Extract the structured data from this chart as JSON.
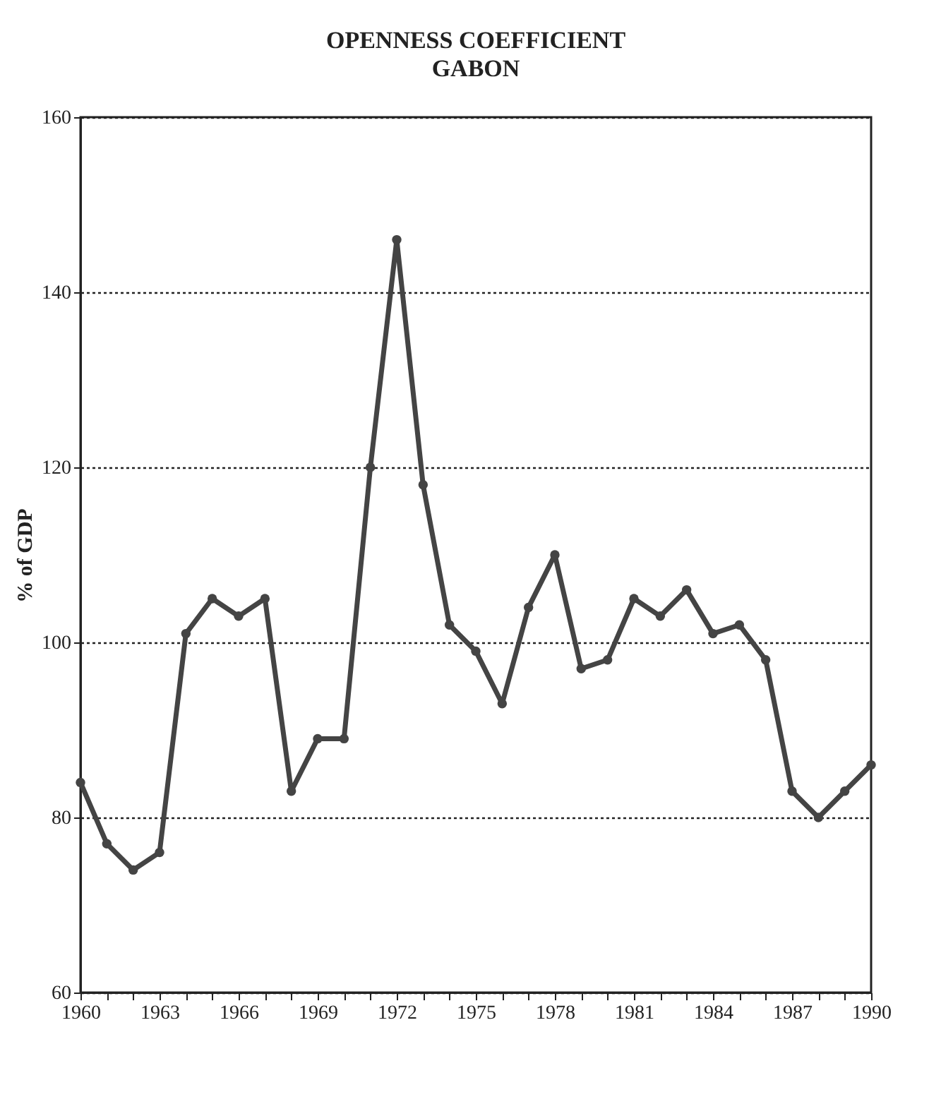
{
  "chart_data": {
    "type": "line",
    "title": "OPENNESS COEFFICIENT",
    "subtitle": "GABON",
    "ylabel": "% of GDP",
    "x": [
      1960,
      1961,
      1962,
      1963,
      1964,
      1965,
      1966,
      1967,
      1968,
      1969,
      1970,
      1971,
      1972,
      1973,
      1974,
      1975,
      1976,
      1977,
      1978,
      1979,
      1980,
      1981,
      1982,
      1983,
      1984,
      1985,
      1986,
      1987,
      1988,
      1989,
      1990
    ],
    "series": [
      {
        "color": "#444444",
        "values": [
          84,
          77,
          74,
          76,
          101,
          105,
          103,
          105,
          83,
          89,
          89,
          120,
          146,
          118,
          102,
          99,
          93,
          104,
          110,
          97,
          98,
          105,
          103,
          106,
          101,
          102,
          98,
          83,
          80,
          83,
          86
        ]
      }
    ],
    "xlim": [
      1960,
      1990
    ],
    "xticks": [
      1960,
      {
        "value": 1961,
        "label": null
      },
      {
        "value": 1962,
        "label": null
      },
      1963,
      {
        "value": 1964,
        "label": null
      },
      {
        "value": 1965,
        "label": null
      },
      1966,
      {
        "value": 1967,
        "label": null
      },
      {
        "value": 1968,
        "label": null
      },
      1969,
      {
        "value": 1970,
        "label": null
      },
      {
        "value": 1971,
        "label": null
      },
      1972,
      {
        "value": 1973,
        "label": null
      },
      {
        "value": 1974,
        "label": null
      },
      1975,
      {
        "value": 1976,
        "label": null
      },
      {
        "value": 1977,
        "label": null
      },
      1978,
      {
        "value": 1979,
        "label": null
      },
      {
        "value": 1980,
        "label": null
      },
      1981,
      {
        "value": 1982,
        "label": null
      },
      {
        "value": 1983,
        "label": null
      },
      1984,
      {
        "value": 1985,
        "label": null
      },
      {
        "value": 1986,
        "label": null
      },
      1987,
      {
        "value": 1988,
        "label": null
      },
      {
        "value": 1989,
        "label": null
      },
      1990
    ],
    "ylim": [
      60,
      160
    ],
    "yticks": [
      60,
      80,
      100,
      120,
      140,
      160
    ],
    "grid": "y",
    "marker": "circle",
    "line_style": "solid"
  }
}
